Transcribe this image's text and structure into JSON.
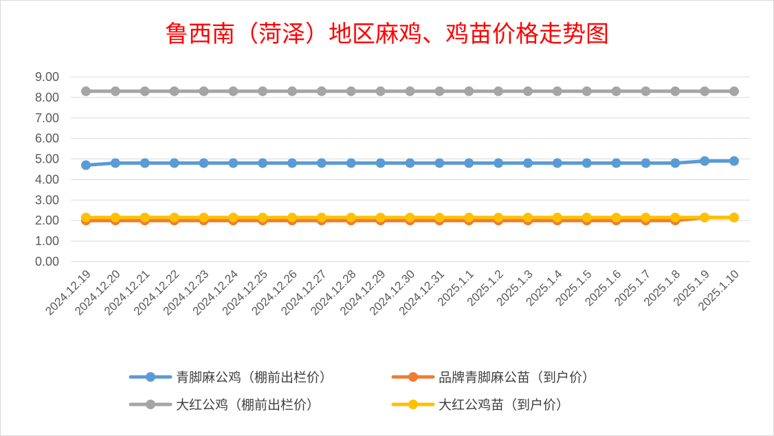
{
  "chart_data": {
    "type": "line",
    "title": "鲁西南（菏泽）地区麻鸡、鸡苗价格走势图",
    "xlabel": "",
    "ylabel": "",
    "ylim": [
      0,
      9
    ],
    "yticks": [
      "0.00",
      "1.00",
      "2.00",
      "3.00",
      "4.00",
      "5.00",
      "6.00",
      "7.00",
      "8.00",
      "9.00"
    ],
    "grid": true,
    "legend_position": "bottom",
    "categories": [
      "2024.12.19",
      "2024.12.20",
      "2024.12.21",
      "2024.12.22",
      "2024.12.23",
      "2024.12.24",
      "2024.12.25",
      "2024.12.26",
      "2024.12.27",
      "2024.12.28",
      "2024.12.29",
      "2024.12.30",
      "2024.12.31",
      "2025.1.1",
      "2025.1.2",
      "2025.1.3",
      "2025.1.4",
      "2025.1.5",
      "2025.1.6",
      "2025.1.7",
      "2025.1.8",
      "2025.1.9",
      "2025.1.10"
    ],
    "series": [
      {
        "name": "青脚麻公鸡（棚前出栏价）",
        "color": "#5b9bd5",
        "values": [
          4.7,
          4.8,
          4.8,
          4.8,
          4.8,
          4.8,
          4.8,
          4.8,
          4.8,
          4.8,
          4.8,
          4.8,
          4.8,
          4.8,
          4.8,
          4.8,
          4.8,
          4.8,
          4.8,
          4.8,
          4.8,
          4.9,
          4.9
        ]
      },
      {
        "name": "品牌青脚麻公苗（到户价）",
        "color": "#ed7d31",
        "values": [
          2.0,
          2.0,
          2.0,
          2.0,
          2.0,
          2.0,
          2.0,
          2.0,
          2.0,
          2.0,
          2.0,
          2.0,
          2.0,
          2.0,
          2.0,
          2.0,
          2.0,
          2.0,
          2.0,
          2.0,
          2.0,
          2.15,
          2.15
        ]
      },
      {
        "name": "大红公鸡（棚前出栏价）",
        "color": "#a5a5a5",
        "values": [
          8.3,
          8.3,
          8.3,
          8.3,
          8.3,
          8.3,
          8.3,
          8.3,
          8.3,
          8.3,
          8.3,
          8.3,
          8.3,
          8.3,
          8.3,
          8.3,
          8.3,
          8.3,
          8.3,
          8.3,
          8.3,
          8.3,
          8.3
        ]
      },
      {
        "name": "大红公鸡苗（到户价）",
        "color": "#ffc000",
        "values": [
          2.15,
          2.15,
          2.15,
          2.15,
          2.15,
          2.15,
          2.15,
          2.15,
          2.15,
          2.15,
          2.15,
          2.15,
          2.15,
          2.15,
          2.15,
          2.15,
          2.15,
          2.15,
          2.15,
          2.15,
          2.15,
          2.15,
          2.15
        ]
      }
    ]
  }
}
